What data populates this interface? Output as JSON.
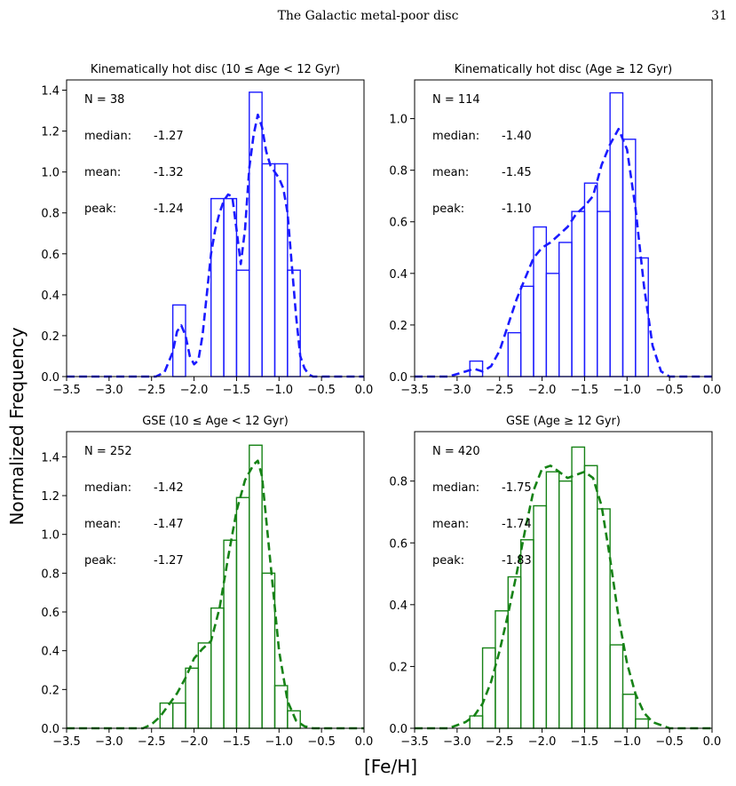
{
  "page": {
    "running_title": "The Galactic metal-poor disc",
    "page_number": "31"
  },
  "figure": {
    "xlabel": "[Fe/H]",
    "ylabel": "Normalized Frequency"
  },
  "colors": {
    "blue": "#1a1aff",
    "green": "#168216"
  },
  "chart_data": [
    {
      "type": "histogram+kde",
      "title": "Kinematically hot disc (10 ≤ Age < 12 Gyr)",
      "color": "#1a1aff",
      "xlim": [
        -3.5,
        0.0
      ],
      "ylim": [
        0.0,
        1.45
      ],
      "xticks": [
        -3.5,
        -3.0,
        -2.5,
        -2.0,
        -1.5,
        -1.0,
        -0.5,
        0.0
      ],
      "xtick_labels": [
        "−3.5",
        "−3.0",
        "−2.5",
        "−2.0",
        "−1.5",
        "−1.0",
        "−0.5",
        "0.0"
      ],
      "yticks": [
        0.0,
        0.2,
        0.4,
        0.6,
        0.8,
        1.0,
        1.2,
        1.4
      ],
      "ytick_labels": [
        "0.0",
        "0.2",
        "0.4",
        "0.6",
        "0.8",
        "1.0",
        "1.2",
        "1.4"
      ],
      "bin_edges": [
        -2.25,
        -2.1,
        -1.95,
        -1.8,
        -1.65,
        -1.5,
        -1.35,
        -1.2,
        -1.05,
        -0.9,
        -0.75
      ],
      "counts": [
        0.35,
        0.0,
        0.0,
        0.87,
        0.87,
        0.52,
        1.39,
        1.04,
        1.04,
        0.52
      ],
      "kde": {
        "x": [
          -3.5,
          -2.45,
          -2.35,
          -2.25,
          -2.2,
          -2.15,
          -2.1,
          -2.05,
          -2.0,
          -1.95,
          -1.9,
          -1.85,
          -1.8,
          -1.75,
          -1.7,
          -1.65,
          -1.6,
          -1.55,
          -1.5,
          -1.45,
          -1.4,
          -1.35,
          -1.3,
          -1.25,
          -1.2,
          -1.15,
          -1.1,
          -1.05,
          -1.0,
          -0.95,
          -0.9,
          -0.85,
          -0.8,
          -0.75,
          -0.7,
          -0.65,
          -0.6,
          0.0
        ],
        "y": [
          0.0,
          0.0,
          0.02,
          0.12,
          0.22,
          0.25,
          0.2,
          0.1,
          0.06,
          0.08,
          0.2,
          0.4,
          0.6,
          0.72,
          0.8,
          0.86,
          0.89,
          0.88,
          0.72,
          0.55,
          0.72,
          1.02,
          1.18,
          1.28,
          1.22,
          1.1,
          1.03,
          1.0,
          0.97,
          0.92,
          0.8,
          0.55,
          0.3,
          0.1,
          0.04,
          0.01,
          0.0,
          0.0
        ]
      },
      "stats": [
        {
          "label": "N = 38",
          "value": ""
        },
        {
          "label": "median:",
          "value": "-1.27"
        },
        {
          "label": "mean:  ",
          "value": "-1.32"
        },
        {
          "label": "peak:  ",
          "value": "-1.24"
        }
      ]
    },
    {
      "type": "histogram+kde",
      "title": "Kinematically hot disc (Age ≥ 12 Gyr)",
      "color": "#1a1aff",
      "xlim": [
        -3.5,
        0.0
      ],
      "ylim": [
        0.0,
        1.15
      ],
      "xticks": [
        -3.5,
        -3.0,
        -2.5,
        -2.0,
        -1.5,
        -1.0,
        -0.5,
        0.0
      ],
      "xtick_labels": [
        "−3.5",
        "−3.0",
        "−2.5",
        "−2.0",
        "−1.5",
        "−1.0",
        "−0.5",
        "0.0"
      ],
      "yticks": [
        0.0,
        0.2,
        0.4,
        0.6,
        0.8,
        1.0
      ],
      "ytick_labels": [
        "0.0",
        "0.2",
        "0.4",
        "0.6",
        "0.8",
        "1.0"
      ],
      "bin_edges": [
        -2.85,
        -2.7,
        -2.55,
        -2.4,
        -2.25,
        -2.1,
        -1.95,
        -1.8,
        -1.65,
        -1.5,
        -1.35,
        -1.2,
        -1.05,
        -0.9,
        -0.75
      ],
      "counts": [
        0.06,
        0.0,
        0.0,
        0.17,
        0.35,
        0.58,
        0.4,
        0.52,
        0.64,
        0.75,
        0.64,
        1.1,
        0.92,
        0.46
      ],
      "kde": {
        "x": [
          -3.5,
          -3.1,
          -3.0,
          -2.9,
          -2.8,
          -2.7,
          -2.6,
          -2.5,
          -2.4,
          -2.3,
          -2.2,
          -2.1,
          -2.0,
          -1.9,
          -1.8,
          -1.7,
          -1.6,
          -1.5,
          -1.4,
          -1.3,
          -1.2,
          -1.1,
          -1.0,
          -0.9,
          -0.8,
          -0.7,
          -0.6,
          -0.5,
          0.0
        ],
        "y": [
          0.0,
          0.0,
          0.01,
          0.02,
          0.03,
          0.02,
          0.04,
          0.1,
          0.2,
          0.3,
          0.38,
          0.46,
          0.5,
          0.52,
          0.55,
          0.58,
          0.63,
          0.66,
          0.7,
          0.82,
          0.9,
          0.96,
          0.88,
          0.65,
          0.35,
          0.12,
          0.02,
          0.0,
          0.0
        ]
      },
      "stats": [
        {
          "label": "N = 114",
          "value": ""
        },
        {
          "label": "median:",
          "value": "-1.40"
        },
        {
          "label": "mean:  ",
          "value": "-1.45"
        },
        {
          "label": "peak:  ",
          "value": "-1.10"
        }
      ]
    },
    {
      "type": "histogram+kde",
      "title": "GSE (10 ≤ Age < 12 Gyr)",
      "color": "#168216",
      "xlim": [
        -3.5,
        0.0
      ],
      "ylim": [
        0.0,
        1.53
      ],
      "xticks": [
        -3.5,
        -3.0,
        -2.5,
        -2.0,
        -1.5,
        -1.0,
        -0.5,
        0.0
      ],
      "xtick_labels": [
        "−3.5",
        "−3.0",
        "−2.5",
        "−2.0",
        "−1.5",
        "−1.0",
        "−0.5",
        "0.0"
      ],
      "yticks": [
        0.0,
        0.2,
        0.4,
        0.6,
        0.8,
        1.0,
        1.2,
        1.4
      ],
      "ytick_labels": [
        "0.0",
        "0.2",
        "0.4",
        "0.6",
        "0.8",
        "1.0",
        "1.2",
        "1.4"
      ],
      "bin_edges": [
        -2.4,
        -2.25,
        -2.1,
        -1.95,
        -1.8,
        -1.65,
        -1.5,
        -1.35,
        -1.2,
        -1.05,
        -0.9,
        -0.75
      ],
      "counts": [
        0.13,
        0.13,
        0.31,
        0.44,
        0.62,
        0.97,
        1.19,
        1.46,
        0.8,
        0.22,
        0.09
      ],
      "kde": {
        "x": [
          -3.5,
          -2.6,
          -2.5,
          -2.4,
          -2.3,
          -2.2,
          -2.1,
          -2.0,
          -1.9,
          -1.8,
          -1.7,
          -1.6,
          -1.5,
          -1.4,
          -1.3,
          -1.25,
          -1.2,
          -1.1,
          -1.0,
          -0.9,
          -0.8,
          -0.7,
          -0.6,
          0.0
        ],
        "y": [
          0.0,
          0.0,
          0.02,
          0.06,
          0.12,
          0.18,
          0.26,
          0.36,
          0.41,
          0.45,
          0.62,
          0.88,
          1.12,
          1.28,
          1.36,
          1.38,
          1.3,
          0.85,
          0.4,
          0.14,
          0.04,
          0.01,
          0.0,
          0.0
        ]
      },
      "stats": [
        {
          "label": "N = 252",
          "value": ""
        },
        {
          "label": "median:",
          "value": "-1.42"
        },
        {
          "label": "mean:  ",
          "value": "-1.47"
        },
        {
          "label": "peak:  ",
          "value": "-1.27"
        }
      ]
    },
    {
      "type": "histogram+kde",
      "title": "GSE (Age ≥ 12 Gyr)",
      "color": "#168216",
      "xlim": [
        -3.5,
        0.0
      ],
      "ylim": [
        0.0,
        0.96
      ],
      "xticks": [
        -3.5,
        -3.0,
        -2.5,
        -2.0,
        -1.5,
        -1.0,
        -0.5,
        0.0
      ],
      "xtick_labels": [
        "−3.5",
        "−3.0",
        "−2.5",
        "−2.0",
        "−1.5",
        "−1.0",
        "−0.5",
        "0.0"
      ],
      "yticks": [
        0.0,
        0.2,
        0.4,
        0.6,
        0.8
      ],
      "ytick_labels": [
        "0.0",
        "0.2",
        "0.4",
        "0.6",
        "0.8"
      ],
      "bin_edges": [
        -2.85,
        -2.7,
        -2.55,
        -2.4,
        -2.25,
        -2.1,
        -1.95,
        -1.8,
        -1.65,
        -1.5,
        -1.35,
        -1.2,
        -1.05,
        -0.9,
        -0.75
      ],
      "counts": [
        0.04,
        0.26,
        0.38,
        0.49,
        0.61,
        0.72,
        0.83,
        0.8,
        0.91,
        0.85,
        0.71,
        0.27,
        0.11,
        0.03
      ],
      "kde": {
        "x": [
          -3.5,
          -3.1,
          -3.0,
          -2.9,
          -2.8,
          -2.7,
          -2.6,
          -2.5,
          -2.4,
          -2.3,
          -2.2,
          -2.1,
          -2.0,
          -1.9,
          -1.8,
          -1.7,
          -1.6,
          -1.5,
          -1.4,
          -1.3,
          -1.2,
          -1.1,
          -1.0,
          -0.9,
          -0.8,
          -0.7,
          -0.6,
          -0.5,
          0.0
        ],
        "y": [
          0.0,
          0.0,
          0.01,
          0.02,
          0.04,
          0.08,
          0.15,
          0.25,
          0.37,
          0.5,
          0.64,
          0.77,
          0.84,
          0.85,
          0.83,
          0.81,
          0.82,
          0.83,
          0.81,
          0.72,
          0.55,
          0.36,
          0.21,
          0.11,
          0.05,
          0.02,
          0.01,
          0.0,
          0.0
        ]
      },
      "stats": [
        {
          "label": "N = 420",
          "value": ""
        },
        {
          "label": "median:",
          "value": "-1.75"
        },
        {
          "label": "mean:  ",
          "value": "-1.74"
        },
        {
          "label": "peak:  ",
          "value": "-1.83"
        }
      ]
    }
  ]
}
